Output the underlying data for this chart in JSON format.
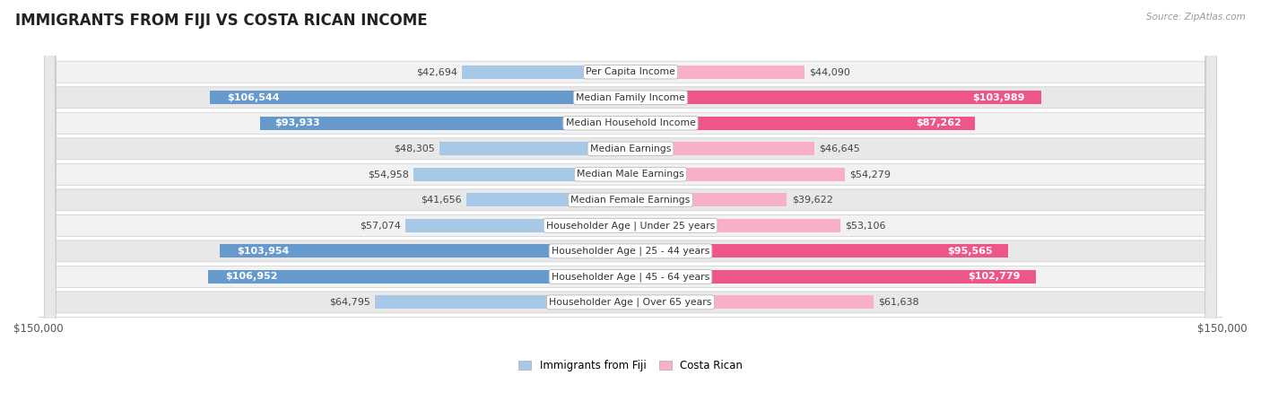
{
  "title": "IMMIGRANTS FROM FIJI VS COSTA RICAN INCOME",
  "source": "Source: ZipAtlas.com",
  "categories": [
    "Per Capita Income",
    "Median Family Income",
    "Median Household Income",
    "Median Earnings",
    "Median Male Earnings",
    "Median Female Earnings",
    "Householder Age | Under 25 years",
    "Householder Age | 25 - 44 years",
    "Householder Age | 45 - 64 years",
    "Householder Age | Over 65 years"
  ],
  "fiji_values": [
    42694,
    106544,
    93933,
    48305,
    54958,
    41656,
    57074,
    103954,
    106952,
    64795
  ],
  "costarican_values": [
    44090,
    103989,
    87262,
    46645,
    54279,
    39622,
    53106,
    95565,
    102779,
    61638
  ],
  "fiji_labels": [
    "$42,694",
    "$106,544",
    "$93,933",
    "$48,305",
    "$54,958",
    "$41,656",
    "$57,074",
    "$103,954",
    "$106,952",
    "$64,795"
  ],
  "costarican_labels": [
    "$44,090",
    "$103,989",
    "$87,262",
    "$46,645",
    "$54,279",
    "$39,622",
    "$53,106",
    "$95,565",
    "$102,779",
    "$61,638"
  ],
  "fiji_color_light": "#a8c8e8",
  "fiji_color_dark": "#6699cc",
  "costarican_color_light": "#f8b0c8",
  "costarican_color_dark": "#ee5588",
  "max_value": 150000,
  "bar_height": 0.52,
  "background_color": "#ffffff",
  "row_bg_color": "#f0f0f0",
  "label_fontsize": 8.0,
  "title_fontsize": 12,
  "category_fontsize": 7.8,
  "inside_label_threshold": 80000
}
